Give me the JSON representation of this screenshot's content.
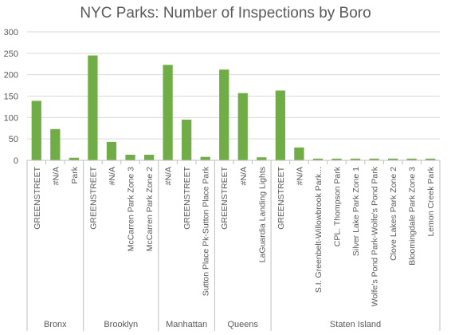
{
  "chart_data": {
    "type": "bar",
    "title": "NYC Parks: Number of Inspections by Boro",
    "xlabel": "",
    "ylabel": "",
    "ylim": [
      0,
      300
    ],
    "yticks": [
      0,
      50,
      100,
      150,
      200,
      250,
      300
    ],
    "grid": true,
    "bar_color": "#70ad47",
    "groups": [
      {
        "name": "Bronx",
        "categories": [
          "GREENSTREET",
          "#N/A",
          "Park"
        ],
        "values": [
          139,
          73,
          6
        ]
      },
      {
        "name": "Brooklyn",
        "categories": [
          "GREENSTREET",
          "#N/A",
          "McCarren Park Zone 3",
          "McCarren Park Zone 2"
        ],
        "values": [
          245,
          43,
          13,
          13
        ]
      },
      {
        "name": "Manhattan",
        "categories": [
          "#N/A",
          "GREENSTREET",
          "Sutton Place Pk-Sutton Place Park"
        ],
        "values": [
          223,
          95,
          8
        ]
      },
      {
        "name": "Queens",
        "categories": [
          "GREENSTREET",
          "#N/A",
          "LaGuardia Landing Lights"
        ],
        "values": [
          212,
          157,
          7
        ]
      },
      {
        "name": "Staten Island",
        "categories": [
          "GREENSTREET",
          "#N/A",
          "S.I. Greenbelt-Willowbrook Park...",
          "CPL. Thompson Park",
          "Silver Lake Park Zone 1",
          "Wolfe's Pond Park-Wolfe's Pond Park",
          "Clove Lakes Park Zone 2",
          "Bloomingdale Park Zone 3",
          "Lemon Creek Park"
        ],
        "values": [
          163,
          30,
          4,
          4,
          4,
          4,
          4,
          4,
          4
        ]
      }
    ]
  }
}
